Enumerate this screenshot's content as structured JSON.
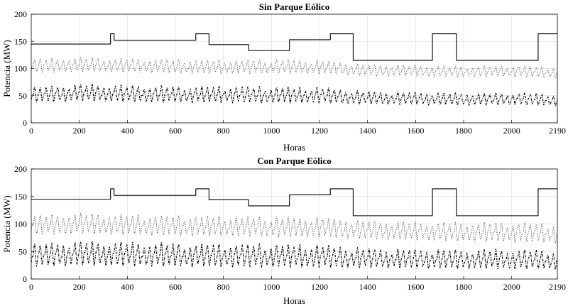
{
  "chart_data": [
    {
      "type": "line",
      "title": "Sin Parque Eólico",
      "xlabel": "Horas",
      "ylabel": "Potencia (MW)",
      "xlim": [
        0,
        2190
      ],
      "ylim": [
        0,
        200
      ],
      "xticks": [
        0,
        200,
        400,
        600,
        800,
        1000,
        1200,
        1400,
        1600,
        1800,
        2000,
        2190
      ],
      "yticks": [
        0,
        50,
        100,
        150,
        200
      ],
      "grid": true,
      "legend": "none",
      "series": [
        {
          "style": "solid",
          "shape": "step",
          "x": [
            0,
            330,
            330,
            345,
            345,
            685,
            685,
            740,
            740,
            905,
            905,
            1075,
            1075,
            1245,
            1245,
            1340,
            1340,
            1670,
            1670,
            1770,
            1770,
            2110,
            2110,
            2190
          ],
          "values": [
            145,
            145,
            164,
            164,
            152,
            152,
            164,
            164,
            144,
            144,
            133,
            133,
            153,
            153,
            164,
            164,
            115,
            115,
            164,
            164,
            115,
            115,
            164,
            164
          ]
        },
        {
          "style": "dotted",
          "shape": "oscillating",
          "x": [
            0,
            200,
            400,
            600,
            800,
            1000,
            1200,
            1400,
            1600,
            1800,
            2000,
            2190
          ],
          "daily_peak": [
            118,
            121,
            119,
            117,
            116,
            117,
            116,
            108,
            107,
            104,
            106,
            103
          ],
          "daily_min": [
            92,
            94,
            93,
            91,
            90,
            91,
            90,
            86,
            85,
            84,
            85,
            82
          ]
        },
        {
          "style": "dashdot",
          "shape": "oscillating",
          "x": [
            0,
            200,
            400,
            600,
            800,
            1000,
            1200,
            1400,
            1600,
            1800,
            2000,
            2190
          ],
          "daily_peak": [
            66,
            72,
            70,
            68,
            68,
            67,
            66,
            58,
            57,
            55,
            56,
            53
          ],
          "daily_min": [
            37,
            40,
            38,
            37,
            37,
            36,
            36,
            34,
            33,
            32,
            33,
            31
          ]
        }
      ]
    },
    {
      "type": "line",
      "title": "Con Parque Eólico",
      "xlabel": "Horas",
      "ylabel": "Potencia (MW)",
      "xlim": [
        0,
        2190
      ],
      "ylim": [
        0,
        200
      ],
      "xticks": [
        0,
        200,
        400,
        600,
        800,
        1000,
        1200,
        1400,
        1600,
        1800,
        2000,
        2190
      ],
      "yticks": [
        0,
        50,
        100,
        150,
        200
      ],
      "grid": true,
      "legend": "none",
      "series": [
        {
          "style": "solid",
          "shape": "step",
          "x": [
            0,
            330,
            330,
            345,
            345,
            685,
            685,
            740,
            740,
            905,
            905,
            1075,
            1075,
            1245,
            1245,
            1340,
            1340,
            1670,
            1670,
            1770,
            1770,
            2110,
            2110,
            2190
          ],
          "values": [
            145,
            145,
            164,
            164,
            152,
            152,
            164,
            164,
            144,
            144,
            133,
            133,
            153,
            153,
            164,
            164,
            115,
            115,
            164,
            164,
            115,
            115,
            164,
            164
          ]
        },
        {
          "style": "dotted",
          "shape": "oscillating",
          "x": [
            0,
            200,
            400,
            600,
            800,
            1000,
            1200,
            1400,
            1600,
            1800,
            2000,
            2190
          ],
          "daily_peak": [
            116,
            120,
            118,
            116,
            115,
            114,
            113,
            106,
            105,
            103,
            104,
            101
          ],
          "daily_min": [
            80,
            82,
            80,
            78,
            77,
            76,
            75,
            72,
            70,
            68,
            67,
            65
          ]
        },
        {
          "style": "dashdot",
          "shape": "oscillating",
          "x": [
            0,
            200,
            400,
            600,
            800,
            1000,
            1200,
            1400,
            1600,
            1800,
            2000,
            2190
          ],
          "daily_peak": [
            64,
            70,
            68,
            66,
            65,
            64,
            63,
            56,
            55,
            54,
            55,
            52
          ],
          "daily_min": [
            22,
            24,
            23,
            22,
            21,
            21,
            20,
            20,
            19,
            18,
            18,
            17
          ]
        }
      ]
    }
  ]
}
